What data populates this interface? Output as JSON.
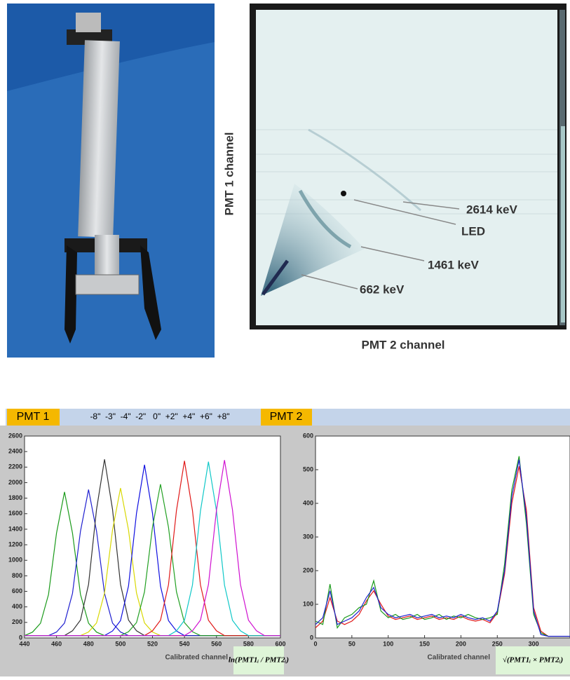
{
  "scatter_panel": {
    "y_label": "PMT 1 channel",
    "x_label": "PMT 2 channel",
    "annotations": [
      "2614 keV",
      "LED",
      "1461 keV",
      "662 keV"
    ]
  },
  "header": {
    "pmt1": "PMT 1",
    "offsets": "-8\"  -3\"  -4\"  -2\"   0\"  +2\"  +4\"  +6\"  +8\"",
    "pmt2": "PMT 2"
  },
  "chart_data": [
    {
      "type": "line",
      "x_label": "Calibrated channel",
      "formula": "ln(PMT1ᵢ / PMT2ᵢ)",
      "xlim": [
        440,
        600
      ],
      "xticks": [
        440,
        460,
        480,
        500,
        520,
        540,
        560,
        580,
        600
      ],
      "ylim": [
        0,
        2600
      ],
      "yticks": [
        0,
        200,
        400,
        600,
        800,
        1000,
        1200,
        1400,
        1600,
        1800,
        2000,
        2200,
        2400,
        2600
      ],
      "x": [
        440,
        445,
        450,
        455,
        460,
        465,
        470,
        475,
        480,
        485,
        490,
        495,
        500,
        505,
        510,
        515,
        520,
        525,
        530,
        535,
        540,
        545,
        550,
        555,
        560,
        565,
        570,
        575,
        580,
        585,
        590,
        595,
        600
      ],
      "series": [
        {
          "color": "#1a9a1a",
          "values": [
            30,
            75,
            190,
            560,
            1350,
            1880,
            1350,
            560,
            190,
            75,
            30,
            30,
            30,
            30,
            30,
            30,
            30,
            30,
            30,
            30,
            30,
            30,
            30,
            30,
            30,
            30,
            30,
            30,
            30,
            30,
            30,
            30,
            30
          ]
        },
        {
          "color": "#2020d0",
          "values": [
            30,
            30,
            30,
            30,
            76,
            191,
            573,
            1375,
            1910,
            1375,
            573,
            191,
            76,
            30,
            30,
            30,
            30,
            30,
            30,
            30,
            30,
            30,
            30,
            30,
            30,
            30,
            30,
            30,
            30,
            30,
            30,
            30,
            30
          ]
        },
        {
          "color": "#333333",
          "values": [
            30,
            30,
            30,
            30,
            30,
            30,
            92,
            230,
            690,
            1656,
            2300,
            1656,
            690,
            230,
            92,
            30,
            30,
            30,
            30,
            30,
            30,
            30,
            30,
            30,
            30,
            30,
            30,
            30,
            30,
            30,
            30,
            30,
            30
          ]
        },
        {
          "color": "#d8d800",
          "values": [
            30,
            30,
            30,
            30,
            30,
            30,
            30,
            30,
            77,
            193,
            579,
            1390,
            1930,
            1390,
            579,
            193,
            77,
            30,
            30,
            30,
            30,
            30,
            30,
            30,
            30,
            30,
            30,
            30,
            30,
            30,
            30,
            30,
            30
          ]
        },
        {
          "color": "#1010e0",
          "values": [
            30,
            30,
            30,
            30,
            30,
            30,
            30,
            30,
            30,
            30,
            30,
            89,
            223,
            669,
            1606,
            2230,
            1606,
            669,
            223,
            89,
            30,
            30,
            30,
            30,
            30,
            30,
            30,
            30,
            30,
            30,
            30,
            30,
            30
          ]
        },
        {
          "color": "#22a022",
          "values": [
            30,
            30,
            30,
            30,
            30,
            30,
            30,
            30,
            30,
            30,
            30,
            30,
            30,
            79,
            198,
            594,
            1426,
            1980,
            1426,
            594,
            198,
            79,
            30,
            30,
            30,
            30,
            30,
            30,
            30,
            30,
            30,
            30,
            30
          ]
        },
        {
          "color": "#e01818",
          "values": [
            30,
            30,
            30,
            30,
            30,
            30,
            30,
            30,
            30,
            30,
            30,
            30,
            30,
            30,
            30,
            30,
            91,
            228,
            684,
            1642,
            2280,
            1642,
            684,
            228,
            91,
            30,
            30,
            30,
            30,
            30,
            30,
            30,
            30
          ]
        },
        {
          "color": "#10c8c8",
          "values": [
            30,
            30,
            30,
            30,
            30,
            30,
            30,
            30,
            30,
            30,
            30,
            30,
            30,
            30,
            30,
            30,
            30,
            30,
            30,
            91,
            227,
            681,
            1634,
            2270,
            1634,
            681,
            227,
            91,
            30,
            30,
            30,
            30,
            30
          ]
        },
        {
          "color": "#d010d0",
          "values": [
            30,
            30,
            30,
            30,
            30,
            30,
            30,
            30,
            30,
            30,
            30,
            30,
            30,
            30,
            30,
            30,
            30,
            30,
            30,
            30,
            30,
            92,
            229,
            687,
            1649,
            2290,
            1649,
            687,
            229,
            92,
            30,
            30,
            30
          ]
        }
      ]
    },
    {
      "type": "line",
      "x_label": "Calibrated channel",
      "formula": "√(PMT1ᵢ × PMT2ᵢ)",
      "xlim": [
        0,
        350
      ],
      "xticks": [
        0,
        50,
        100,
        150,
        200,
        250,
        300
      ],
      "ylim": [
        0,
        600
      ],
      "yticks": [
        0,
        100,
        200,
        300,
        400,
        500,
        600
      ],
      "x": [
        0,
        10,
        20,
        30,
        40,
        50,
        60,
        70,
        80,
        90,
        100,
        110,
        120,
        130,
        140,
        150,
        160,
        170,
        180,
        190,
        200,
        210,
        220,
        230,
        240,
        250,
        260,
        270,
        280,
        290,
        300,
        310,
        320,
        330,
        340,
        350
      ],
      "series": [
        {
          "color": "#e01818",
          "values": [
            30,
            50,
            120,
            50,
            40,
            50,
            70,
            110,
            140,
            100,
            65,
            55,
            60,
            65,
            55,
            60,
            65,
            55,
            60,
            55,
            65,
            55,
            50,
            55,
            45,
            75,
            190,
            400,
            510,
            380,
            90,
            20,
            5,
            5,
            5,
            5
          ]
        },
        {
          "color": "#1a9a1a",
          "values": [
            50,
            40,
            160,
            30,
            60,
            70,
            90,
            100,
            170,
            80,
            60,
            70,
            55,
            60,
            70,
            55,
            60,
            70,
            55,
            65,
            60,
            70,
            60,
            55,
            60,
            70,
            220,
            440,
            540,
            340,
            70,
            15,
            5,
            5,
            5,
            5
          ]
        },
        {
          "color": "#2020d0",
          "values": [
            40,
            60,
            140,
            40,
            50,
            60,
            80,
            120,
            150,
            90,
            70,
            60,
            65,
            70,
            60,
            65,
            70,
            60,
            65,
            60,
            70,
            60,
            55,
            60,
            50,
            80,
            200,
            420,
            530,
            360,
            80,
            10,
            5,
            5,
            5,
            5
          ]
        }
      ]
    }
  ]
}
